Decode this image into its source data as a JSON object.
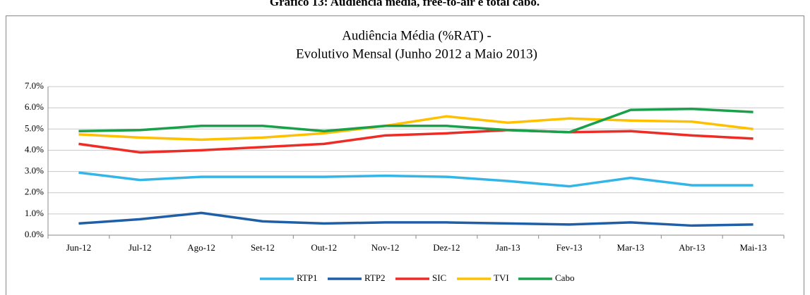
{
  "chart_data": {
    "type": "line",
    "caption": "Gráfico 13: Audiência média, free-to-air e total cabo.",
    "title_lines": [
      "Audiência Média (%RAT) -",
      "Evolutivo Mensal (Junho 2012 a Maio 2013)"
    ],
    "categories": [
      "Jun-12",
      "Jul-12",
      "Ago-12",
      "Set-12",
      "Out-12",
      "Nov-12",
      "Dez-12",
      "Jan-13",
      "Fev-13",
      "Mar-13",
      "Abr-13",
      "Mai-13"
    ],
    "series": [
      {
        "name": "RTP1",
        "color": "#33b5e8",
        "values": [
          2.95,
          2.6,
          2.75,
          2.75,
          2.75,
          2.8,
          2.75,
          2.55,
          2.3,
          2.7,
          2.35,
          2.35
        ]
      },
      {
        "name": "RTP2",
        "color": "#1f5fa8",
        "values": [
          0.55,
          0.75,
          1.05,
          0.65,
          0.55,
          0.6,
          0.6,
          0.55,
          0.5,
          0.6,
          0.45,
          0.5
        ]
      },
      {
        "name": "SIC",
        "color": "#ee2b24",
        "values": [
          4.3,
          3.9,
          4.0,
          4.15,
          4.3,
          4.7,
          4.8,
          4.95,
          4.85,
          4.9,
          4.7,
          4.55
        ]
      },
      {
        "name": "TVI",
        "color": "#ffc000",
        "values": [
          4.75,
          4.6,
          4.5,
          4.6,
          4.8,
          5.15,
          5.6,
          5.3,
          5.5,
          5.4,
          5.35,
          5.0
        ]
      },
      {
        "name": "Cabo",
        "color": "#1aa04a",
        "values": [
          4.9,
          4.95,
          5.15,
          5.15,
          4.9,
          5.15,
          5.15,
          4.95,
          4.85,
          5.9,
          5.95,
          5.8
        ]
      }
    ],
    "ylim": [
      0,
      7
    ],
    "yticks": [
      {
        "value": 0,
        "label": "0.0%"
      },
      {
        "value": 1,
        "label": "1.0%"
      },
      {
        "value": 2,
        "label": "2.0%"
      },
      {
        "value": 3,
        "label": "3.0%"
      },
      {
        "value": 4,
        "label": "4.0%"
      },
      {
        "value": 5,
        "label": "5.0%"
      },
      {
        "value": 6,
        "label": "6.0%"
      },
      {
        "value": 7,
        "label": "7.0%"
      }
    ],
    "grid": true,
    "legend": "bottom"
  }
}
